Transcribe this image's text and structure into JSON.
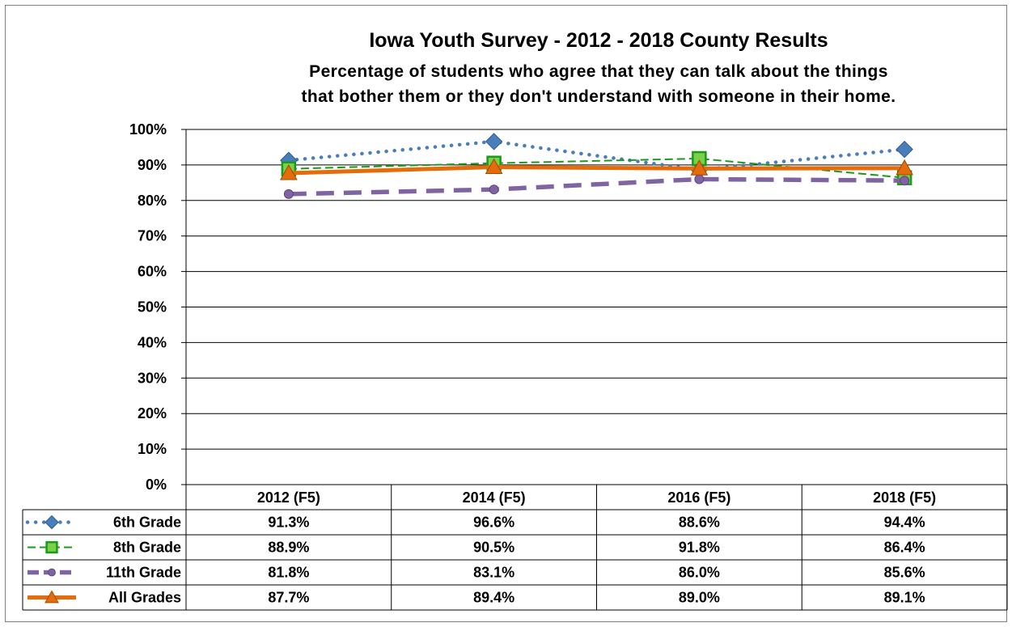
{
  "chart_data": {
    "type": "line",
    "title": "Iowa Youth Survey - 2012 - 2018 County Results",
    "subtitle": [
      "Percentage of students who agree that they can talk about the things",
      "that bother them or they don't understand with someone in their home."
    ],
    "categories": [
      "2012 (F5)",
      "2014 (F5)",
      "2016 (F5)",
      "2018 (F5)"
    ],
    "ylim": [
      0,
      100
    ],
    "yticks": [
      "0%",
      "10%",
      "20%",
      "30%",
      "40%",
      "50%",
      "60%",
      "70%",
      "80%",
      "90%",
      "100%"
    ],
    "grid": true,
    "legend": "data-table-left",
    "series": [
      {
        "name": "6th Grade",
        "values": [
          91.3,
          96.6,
          88.6,
          94.4
        ],
        "labels": [
          "91.3%",
          "96.6%",
          "88.6%",
          "94.4%"
        ],
        "color": "#4a7ebb",
        "line_style": "dotted",
        "marker": "diamond"
      },
      {
        "name": "8th Grade",
        "values": [
          88.9,
          90.5,
          91.8,
          86.4
        ],
        "labels": [
          "88.9%",
          "90.5%",
          "91.8%",
          "86.4%"
        ],
        "color": "#1a9a1a",
        "line_style": "dashed",
        "marker": "square"
      },
      {
        "name": "11th Grade",
        "values": [
          81.8,
          83.1,
          86.0,
          85.6
        ],
        "labels": [
          "81.8%",
          "83.1%",
          "86.0%",
          "85.6%"
        ],
        "color": "#8064a2",
        "line_style": "long-dash",
        "marker": "circle"
      },
      {
        "name": "All Grades",
        "values": [
          87.7,
          89.4,
          89.0,
          89.1
        ],
        "labels": [
          "87.7%",
          "89.4%",
          "89.0%",
          "89.1%"
        ],
        "color": "#e46c0a",
        "line_style": "solid",
        "marker": "triangle"
      }
    ]
  }
}
